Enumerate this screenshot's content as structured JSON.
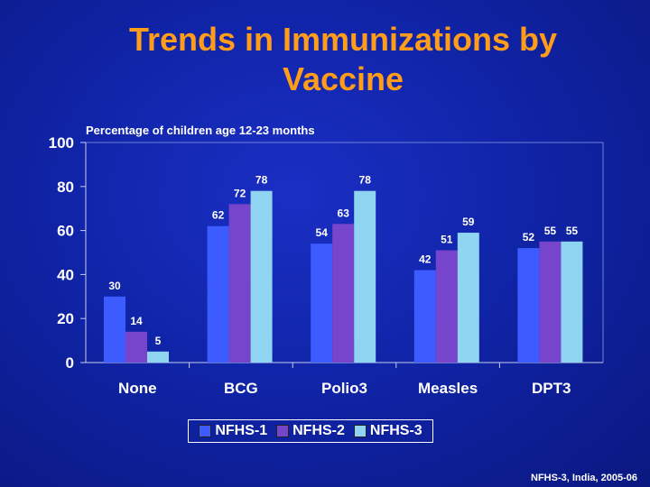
{
  "slide": {
    "title_line1": "Trends in Immunizations by",
    "title_line2": "Vaccine",
    "source": "NFHS-3, India, 2005-06"
  },
  "chart_data": {
    "type": "bar",
    "subtitle": "Percentage of children age 12-23 months",
    "categories": [
      "None",
      "BCG",
      "Polio3",
      "Measles",
      "DPT3"
    ],
    "series": [
      {
        "name": "NFHS-1",
        "values": [
          30,
          62,
          54,
          42,
          52
        ],
        "color": "#3d5cff"
      },
      {
        "name": "NFHS-2",
        "values": [
          14,
          72,
          63,
          51,
          55
        ],
        "color": "#7744cc"
      },
      {
        "name": "NFHS-3",
        "values": [
          5,
          78,
          78,
          59,
          55
        ],
        "color": "#8fd4f0"
      }
    ],
    "ylim": [
      0,
      100
    ],
    "yticks": [
      0,
      20,
      40,
      60,
      80,
      100
    ],
    "grid": false,
    "legend_position": "bottom"
  }
}
